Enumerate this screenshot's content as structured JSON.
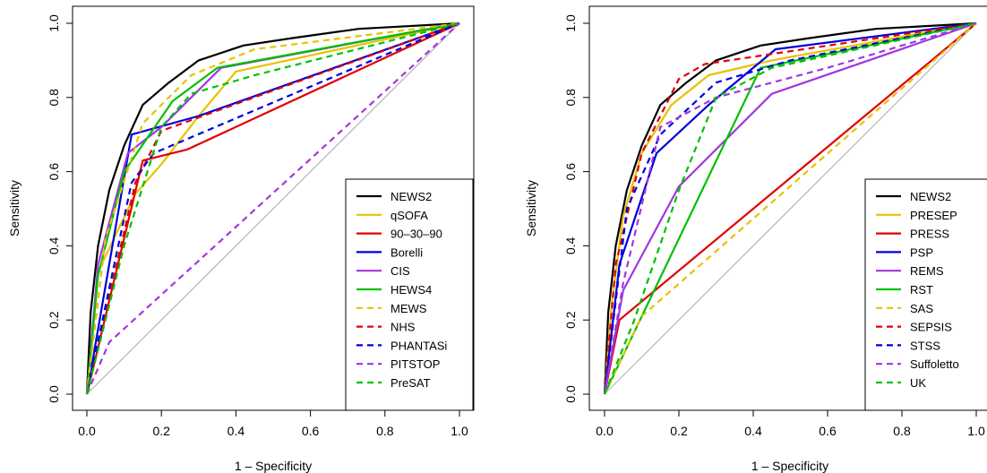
{
  "chart_data": [
    {
      "type": "line",
      "title": "",
      "xlabel": "1 – Specificity",
      "ylabel": "Sensitivity",
      "xlim": [
        0,
        1
      ],
      "ylim": [
        0,
        1
      ],
      "xticks": [
        "0.0",
        "0.2",
        "0.4",
        "0.6",
        "0.8",
        "1.0"
      ],
      "yticks": [
        "0.0",
        "0.2",
        "0.4",
        "0.6",
        "0.8",
        "1.0"
      ],
      "legend_position": "bottom-right",
      "diagonal_reference": true,
      "series": [
        {
          "name": "NEWS2",
          "color": "#000000",
          "dash": "solid",
          "points": [
            [
              0,
              0
            ],
            [
              0.01,
              0.22
            ],
            [
              0.03,
              0.4
            ],
            [
              0.06,
              0.55
            ],
            [
              0.1,
              0.67
            ],
            [
              0.15,
              0.78
            ],
            [
              0.22,
              0.84
            ],
            [
              0.3,
              0.9
            ],
            [
              0.42,
              0.94
            ],
            [
              0.55,
              0.96
            ],
            [
              0.73,
              0.985
            ],
            [
              1,
              1
            ]
          ]
        },
        {
          "name": "qSOFA",
          "color": "#e6c200",
          "dash": "solid",
          "points": [
            [
              0,
              0
            ],
            [
              0.03,
              0.33
            ],
            [
              0.13,
              0.54
            ],
            [
              0.2,
              0.62
            ],
            [
              0.3,
              0.75
            ],
            [
              0.4,
              0.87
            ],
            [
              1,
              1
            ]
          ]
        },
        {
          "name": "90–30–90",
          "color": "#e00000",
          "dash": "solid",
          "points": [
            [
              0,
              0
            ],
            [
              0.15,
              0.63
            ],
            [
              0.27,
              0.66
            ],
            [
              1,
              1
            ]
          ]
        },
        {
          "name": "Borelli",
          "color": "#0000dd",
          "dash": "solid",
          "points": [
            [
              0,
              0
            ],
            [
              0.12,
              0.7
            ],
            [
              0.3,
              0.75
            ],
            [
              1,
              1
            ]
          ]
        },
        {
          "name": "CIS",
          "color": "#a236e0",
          "dash": "solid",
          "points": [
            [
              0,
              0
            ],
            [
              0.03,
              0.35
            ],
            [
              0.11,
              0.65
            ],
            [
              0.2,
              0.72
            ],
            [
              0.36,
              0.88
            ],
            [
              1,
              1
            ]
          ]
        },
        {
          "name": "HEWS4",
          "color": "#00c000",
          "dash": "solid",
          "points": [
            [
              0,
              0
            ],
            [
              0.03,
              0.32
            ],
            [
              0.1,
              0.6
            ],
            [
              0.23,
              0.79
            ],
            [
              0.35,
              0.88
            ],
            [
              1,
              1
            ]
          ]
        },
        {
          "name": "MEWS",
          "color": "#e6c200",
          "dash": "dashed",
          "points": [
            [
              0,
              0
            ],
            [
              0.05,
              0.42
            ],
            [
              0.15,
              0.73
            ],
            [
              0.28,
              0.86
            ],
            [
              0.45,
              0.93
            ],
            [
              1,
              1
            ]
          ]
        },
        {
          "name": "NHS",
          "color": "#e00000",
          "dash": "dashed",
          "points": [
            [
              0,
              0
            ],
            [
              0.13,
              0.57
            ],
            [
              0.2,
              0.71
            ],
            [
              1,
              1
            ]
          ]
        },
        {
          "name": "PHANTASi",
          "color": "#0000dd",
          "dash": "dashed",
          "points": [
            [
              0,
              0
            ],
            [
              0.12,
              0.57
            ],
            [
              0.18,
              0.65
            ],
            [
              1,
              1
            ]
          ]
        },
        {
          "name": "PITSTOP",
          "color": "#a236e0",
          "dash": "dashed",
          "points": [
            [
              0,
              0
            ],
            [
              0.06,
              0.14
            ],
            [
              1,
              1
            ]
          ]
        },
        {
          "name": "PreSAT",
          "color": "#00c000",
          "dash": "dashed",
          "points": [
            [
              0,
              0
            ],
            [
              0.1,
              0.4
            ],
            [
              0.2,
              0.72
            ],
            [
              0.28,
              0.81
            ],
            [
              0.45,
              0.86
            ],
            [
              1,
              1
            ]
          ]
        }
      ]
    },
    {
      "type": "line",
      "title": "",
      "xlabel": "1 – Specificity",
      "ylabel": "Sensitivity",
      "xlim": [
        0,
        1
      ],
      "ylim": [
        0,
        1
      ],
      "xticks": [
        "0.0",
        "0.2",
        "0.4",
        "0.6",
        "0.8",
        "1.0"
      ],
      "yticks": [
        "0.0",
        "0.2",
        "0.4",
        "0.6",
        "0.8",
        "1.0"
      ],
      "legend_position": "bottom-right",
      "diagonal_reference": true,
      "series": [
        {
          "name": "NEWS2",
          "color": "#000000",
          "dash": "solid",
          "points": [
            [
              0,
              0
            ],
            [
              0.01,
              0.22
            ],
            [
              0.03,
              0.4
            ],
            [
              0.06,
              0.55
            ],
            [
              0.1,
              0.67
            ],
            [
              0.15,
              0.78
            ],
            [
              0.22,
              0.84
            ],
            [
              0.3,
              0.9
            ],
            [
              0.42,
              0.94
            ],
            [
              0.55,
              0.96
            ],
            [
              0.73,
              0.985
            ],
            [
              1,
              1
            ]
          ]
        },
        {
          "name": "PRESEP",
          "color": "#e6c200",
          "dash": "solid",
          "points": [
            [
              0,
              0
            ],
            [
              0.02,
              0.25
            ],
            [
              0.05,
              0.48
            ],
            [
              0.1,
              0.65
            ],
            [
              0.18,
              0.78
            ],
            [
              0.28,
              0.86
            ],
            [
              0.45,
              0.9
            ],
            [
              1,
              1
            ]
          ]
        },
        {
          "name": "PRESS",
          "color": "#e00000",
          "dash": "solid",
          "points": [
            [
              0,
              0
            ],
            [
              0.04,
              0.2
            ],
            [
              1,
              1
            ]
          ]
        },
        {
          "name": "PSP",
          "color": "#0000dd",
          "dash": "solid",
          "points": [
            [
              0,
              0
            ],
            [
              0.04,
              0.35
            ],
            [
              0.14,
              0.65
            ],
            [
              0.28,
              0.78
            ],
            [
              0.46,
              0.93
            ],
            [
              1,
              1
            ]
          ]
        },
        {
          "name": "REMS",
          "color": "#a236e0",
          "dash": "solid",
          "points": [
            [
              0,
              0
            ],
            [
              0.05,
              0.28
            ],
            [
              0.2,
              0.56
            ],
            [
              0.45,
              0.81
            ],
            [
              1,
              1
            ]
          ]
        },
        {
          "name": "RST",
          "color": "#00c000",
          "dash": "solid",
          "points": [
            [
              0,
              0
            ],
            [
              0.42,
              0.88
            ],
            [
              1,
              1
            ]
          ]
        },
        {
          "name": "SAS",
          "color": "#e6c200",
          "dash": "dashed",
          "points": [
            [
              0,
              0
            ],
            [
              0.1,
              0.21
            ],
            [
              1,
              1
            ]
          ]
        },
        {
          "name": "SEPSIS",
          "color": "#e00000",
          "dash": "dashed",
          "points": [
            [
              0,
              0
            ],
            [
              0.03,
              0.35
            ],
            [
              0.1,
              0.65
            ],
            [
              0.2,
              0.85
            ],
            [
              0.27,
              0.89
            ],
            [
              1,
              1
            ]
          ]
        },
        {
          "name": "STSS",
          "color": "#0000dd",
          "dash": "dashed",
          "points": [
            [
              0,
              0
            ],
            [
              0.06,
              0.5
            ],
            [
              0.15,
              0.7
            ],
            [
              0.3,
              0.84
            ],
            [
              0.5,
              0.9
            ],
            [
              1,
              1
            ]
          ]
        },
        {
          "name": "Suffoletto",
          "color": "#a236e0",
          "dash": "dashed",
          "points": [
            [
              0,
              0
            ],
            [
              0.05,
              0.3
            ],
            [
              0.15,
              0.72
            ],
            [
              0.3,
              0.8
            ],
            [
              0.6,
              0.88
            ],
            [
              1,
              1
            ]
          ]
        },
        {
          "name": "UK",
          "color": "#00c000",
          "dash": "dashed",
          "points": [
            [
              0,
              0
            ],
            [
              0.08,
              0.2
            ],
            [
              0.2,
              0.55
            ],
            [
              0.3,
              0.8
            ],
            [
              0.45,
              0.88
            ],
            [
              1,
              1
            ]
          ]
        }
      ]
    }
  ]
}
